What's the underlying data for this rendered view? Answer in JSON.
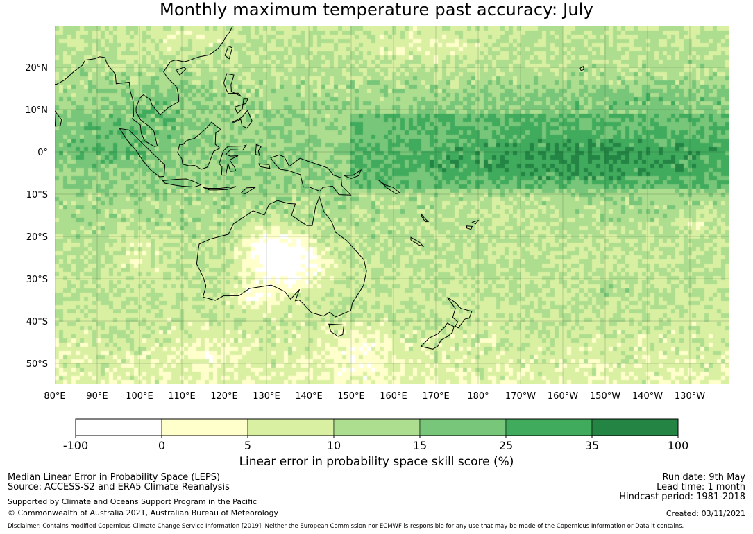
{
  "title": "Monthly maximum temperature past accuracy: July",
  "colors": {
    "bins": [
      "#ffffff",
      "#ffffcc",
      "#d9f0a3",
      "#addd8e",
      "#78c679",
      "#41ab5d",
      "#238443"
    ],
    "land_outline": "#000000",
    "gridline": "#1f4d2a"
  },
  "map": {
    "lat_labels": [
      "20°N",
      "10°N",
      "0°",
      "10°S",
      "20°S",
      "30°S",
      "40°S",
      "50°S"
    ],
    "lon_labels": [
      "80°E",
      "90°E",
      "100°E",
      "110°E",
      "120°E",
      "130°E",
      "140°E",
      "150°E",
      "160°E",
      "170°E",
      "180°",
      "170°W",
      "160°W",
      "150°W",
      "140°W",
      "130°W"
    ]
  },
  "colorbar": {
    "ticks": [
      "-100",
      "0",
      "5",
      "10",
      "15",
      "25",
      "35",
      "100"
    ],
    "title": "Linear error in probability space skill score (%)"
  },
  "footer": {
    "left_line1": "Median Linear Error in Probability Space (LEPS)",
    "left_line2": "Source: ACCESS-S2 and ERA5 Climate Reanalysis",
    "left_line3": "Supported by Climate and Oceans Support Program in the Pacific",
    "left_line4": "© Commonwealth of Australia 2021, Australian Bureau of Meteorology",
    "run_date": "Run date: 9th May",
    "lead_time": "Lead time: 1 month",
    "hindcast": "Hindcast period: 1981-2018",
    "created": "Created: 03/11/2021",
    "disclaimer": "Disclaimer: Contains modified Copernicus Climate Change Service Information [2019]. Neither the European Commission nor ECMWF is responsible for any use that may be made of the Copernicus Information or Data it contains."
  }
}
